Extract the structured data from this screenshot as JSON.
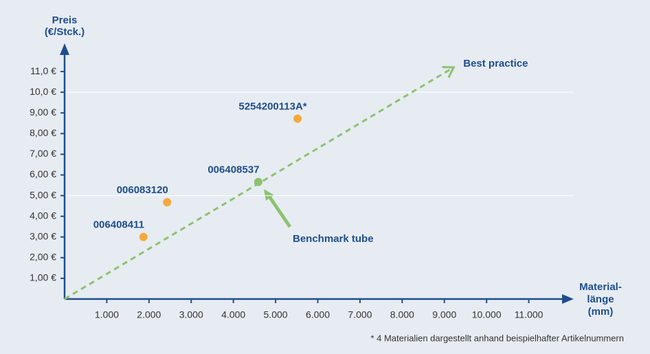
{
  "chart_data": {
    "type": "scatter",
    "ylabel": [
      "Preis",
      "(€/Stck.)"
    ],
    "xlabel": [
      "Material-",
      "länge",
      "(mm)"
    ],
    "labels": [
      "006408411",
      "006083120",
      "5254200113A*",
      "006408537"
    ],
    "x": [
      1870,
      2430,
      5520,
      4590
    ],
    "y": [
      3.0,
      4.68,
      8.72,
      5.66
    ],
    "colors": [
      "#f5a93a",
      "#f5a93a",
      "#f5a93a",
      "#8dc26f"
    ],
    "xlim": [
      0,
      12000
    ],
    "ylim": [
      0,
      12
    ],
    "xticks": [
      {
        "value": 1000,
        "label": "1.000"
      },
      {
        "value": 2000,
        "label": "2.000"
      },
      {
        "value": 3000,
        "label": "3.000"
      },
      {
        "value": 4000,
        "label": "4.000"
      },
      {
        "value": 5000,
        "label": "5.000"
      },
      {
        "value": 6000,
        "label": "6.000"
      },
      {
        "value": 7000,
        "label": "7.000"
      },
      {
        "value": 8000,
        "label": "8.000"
      },
      {
        "value": 9000,
        "label": "9.000"
      },
      {
        "value": 10000,
        "label": "10.000"
      },
      {
        "value": 11000,
        "label": "11.000"
      }
    ],
    "yticks": [
      {
        "value": 1,
        "label": "1,00 €"
      },
      {
        "value": 2,
        "label": "2,00 €"
      },
      {
        "value": 3,
        "label": "3,00 €"
      },
      {
        "value": 4,
        "label": "4,00 €"
      },
      {
        "value": 5,
        "label": "5,00 €"
      },
      {
        "value": 6,
        "label": "6,00 €"
      },
      {
        "value": 7,
        "label": "7,00 €"
      },
      {
        "value": 8,
        "label": "8,00 €"
      },
      {
        "value": 9,
        "label": "9,00 €"
      },
      {
        "value": 10,
        "label": "10,0 €"
      },
      {
        "value": 11,
        "label": "11,0 €"
      }
    ],
    "ygrid": [
      5,
      10
    ],
    "trend": {
      "name": "Best practice",
      "x": [
        0,
        9220
      ],
      "y": [
        0,
        11.2
      ],
      "color": "#8dc26f"
    },
    "annotation": "Benchmark tube",
    "footnote": "* 4 Materialien dargestellt anhand beispielhafter Artikelnummern"
  }
}
